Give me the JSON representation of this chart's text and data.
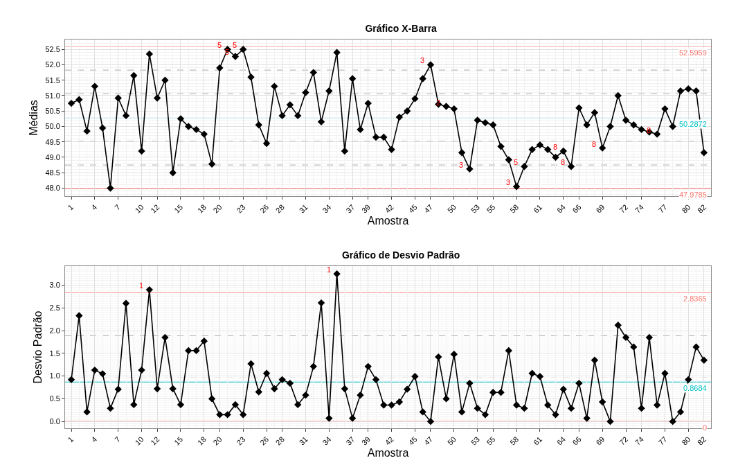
{
  "chart_data": [
    {
      "type": "line",
      "title": "Gráfico X-Barra",
      "xlabel": "Amostra",
      "ylabel": "Médias",
      "x": [
        1,
        2,
        3,
        4,
        5,
        6,
        7,
        8,
        9,
        10,
        11,
        12,
        13,
        14,
        15,
        16,
        17,
        18,
        19,
        20,
        21,
        22,
        23,
        24,
        25,
        26,
        27,
        28,
        29,
        30,
        31,
        32,
        33,
        34,
        35,
        36,
        37,
        38,
        39,
        40,
        41,
        42,
        43,
        44,
        45,
        46,
        47,
        48,
        49,
        50,
        51,
        52,
        53,
        54,
        55,
        56,
        57,
        58,
        59,
        60,
        61,
        62,
        63,
        64,
        65,
        66,
        67,
        68,
        69,
        70,
        71,
        72,
        73,
        74,
        75,
        76,
        77,
        78,
        79,
        80,
        81,
        82
      ],
      "series": [
        {
          "color": "#000000",
          "values": [
            50.75,
            50.87,
            49.85,
            51.3,
            49.95,
            48.0,
            50.92,
            50.35,
            51.65,
            49.2,
            52.35,
            50.92,
            51.5,
            48.5,
            50.25,
            50.0,
            49.9,
            49.75,
            48.78,
            51.9,
            52.5,
            52.27,
            52.5,
            51.6,
            50.05,
            49.45,
            51.3,
            50.35,
            50.7,
            50.35,
            51.1,
            51.75,
            50.15,
            51.15,
            52.4,
            49.2,
            51.55,
            49.9,
            50.75,
            49.65,
            49.65,
            49.25,
            50.3,
            50.5,
            50.9,
            51.55,
            52.0,
            50.72,
            50.65,
            50.57,
            49.15,
            48.62,
            50.2,
            50.12,
            50.05,
            49.35,
            48.92,
            48.05,
            48.7,
            49.25,
            49.4,
            49.25,
            49.0,
            49.2,
            48.7,
            50.6,
            50.05,
            50.45,
            49.3,
            50.0,
            51.0,
            50.2,
            50.05,
            49.9,
            49.82,
            49.75,
            50.57,
            50.0,
            51.15,
            51.22,
            51.15,
            49.15
          ]
        }
      ],
      "xlim": [
        0.2,
        82.9
      ],
      "xticks": [
        1,
        4,
        7,
        10,
        12,
        15,
        18,
        20,
        23,
        26,
        28,
        31,
        34,
        37,
        39,
        42,
        45,
        47,
        50,
        53,
        55,
        58,
        61,
        64,
        66,
        69,
        72,
        74,
        77,
        80,
        82
      ],
      "ylim": [
        47.74,
        52.82
      ],
      "yticks": [
        {
          "value": 48,
          "label": "48.0"
        },
        48.5,
        {
          "value": 49,
          "label": "49.0"
        },
        49.5,
        {
          "value": 50,
          "label": "50.0"
        },
        50.5,
        {
          "value": 51,
          "label": "51.0"
        },
        51.5,
        {
          "value": 52,
          "label": "52.0"
        },
        52.5
      ],
      "ref_lines": [
        {
          "axis": "y",
          "value": 52.5959,
          "label": "52.5959",
          "color": "#f8766d"
        },
        {
          "axis": "y",
          "value": 50.2872,
          "label": "50.2872",
          "color": "#00bfc4"
        },
        {
          "axis": "y",
          "value": 47.9785,
          "label": "47.9785",
          "color": "#f8766d"
        },
        {
          "axis": "y",
          "value": 51.83,
          "color": "#bbbbbb",
          "line_style": "dashed"
        },
        {
          "axis": "y",
          "value": 51.06,
          "color": "#bbbbbb",
          "line_style": "dashed"
        },
        {
          "axis": "y",
          "value": 49.52,
          "color": "#bbbbbb",
          "line_style": "dashed"
        },
        {
          "axis": "y",
          "value": 48.75,
          "color": "#bbbbbb",
          "line_style": "dashed"
        }
      ],
      "annotations": [
        {
          "text": "5",
          "x": 21,
          "y": 52.5
        },
        {
          "text": "5",
          "x": 22,
          "y": 52.27
        },
        {
          "text": "5",
          "x": 23,
          "y": 52.5
        },
        {
          "text": "3",
          "x": 47,
          "y": 52.0
        },
        {
          "text": "2",
          "x": 49,
          "y": 50.65
        },
        {
          "text": "3",
          "x": 52,
          "y": 48.62
        },
        {
          "text": "3",
          "x": 58,
          "y": 48.05
        },
        {
          "text": "5",
          "x": 59,
          "y": 48.7
        },
        {
          "text": "8",
          "x": 64,
          "y": 49.2
        },
        {
          "text": "8",
          "x": 65,
          "y": 48.7
        },
        {
          "text": "8",
          "x": 69,
          "y": 49.3
        },
        {
          "text": "8",
          "x": 76,
          "y": 49.75
        }
      ],
      "grid": true,
      "marker": "diamond",
      "line_style": "solid"
    },
    {
      "type": "line",
      "title": "Gráfico de Desvio Padrão",
      "xlabel": "Amostra",
      "ylabel": "Desvio Padrão",
      "x": [
        1,
        2,
        3,
        4,
        5,
        6,
        7,
        8,
        9,
        10,
        11,
        12,
        13,
        14,
        15,
        16,
        17,
        18,
        19,
        20,
        21,
        22,
        23,
        24,
        25,
        26,
        27,
        28,
        29,
        30,
        31,
        32,
        33,
        34,
        35,
        36,
        37,
        38,
        39,
        40,
        41,
        42,
        43,
        44,
        45,
        46,
        47,
        48,
        49,
        50,
        51,
        52,
        53,
        54,
        55,
        56,
        57,
        58,
        59,
        60,
        61,
        62,
        63,
        64,
        65,
        66,
        67,
        68,
        69,
        70,
        71,
        72,
        73,
        74,
        75,
        76,
        77,
        78,
        79,
        80,
        81,
        82
      ],
      "series": [
        {
          "color": "#000000",
          "values": [
            0.92,
            2.33,
            0.21,
            1.13,
            1.05,
            0.29,
            0.71,
            2.6,
            0.37,
            1.13,
            2.9,
            0.72,
            1.85,
            0.72,
            0.37,
            1.56,
            1.56,
            1.77,
            0.5,
            0.15,
            0.15,
            0.37,
            0.15,
            1.27,
            0.65,
            1.06,
            0.72,
            0.92,
            0.84,
            0.37,
            0.58,
            1.21,
            2.61,
            0.07,
            3.25,
            0.72,
            0.07,
            0.58,
            1.21,
            0.92,
            0.36,
            0.36,
            0.43,
            0.71,
            0.99,
            0.21,
            0,
            1.42,
            0.5,
            1.48,
            0.21,
            0.84,
            0.29,
            0.15,
            0.64,
            0.64,
            1.56,
            0.36,
            0.29,
            1.06,
            0.99,
            0.36,
            0.15,
            0.71,
            0.29,
            0.84,
            0.07,
            1.35,
            0.43,
            0,
            2.12,
            1.85,
            1.64,
            0.29,
            1.85,
            0.36,
            1.06,
            0,
            0.21,
            0.92,
            1.64,
            1.35
          ]
        }
      ],
      "xlim": [
        0.2,
        82.9
      ],
      "xticks": [
        1,
        4,
        7,
        10,
        12,
        15,
        18,
        20,
        23,
        26,
        28,
        31,
        34,
        37,
        39,
        42,
        45,
        47,
        50,
        53,
        55,
        58,
        61,
        64,
        66,
        69,
        72,
        74,
        77,
        80,
        82
      ],
      "ylim": [
        -0.15,
        3.42
      ],
      "yticks": [
        {
          "value": 0,
          "label": "0.0"
        },
        0.5,
        {
          "value": 1,
          "label": "1.0"
        },
        1.5,
        {
          "value": 2,
          "label": "2.0"
        },
        2.5,
        {
          "value": 3,
          "label": "3.0"
        }
      ],
      "ref_lines": [
        {
          "axis": "y",
          "value": 2.8365,
          "label": "2.8365",
          "color": "#f8766d"
        },
        {
          "axis": "y",
          "value": 0.8684,
          "label": "0.8684",
          "color": "#00bfc4"
        },
        {
          "axis": "y",
          "value": 0,
          "label": "0",
          "color": "#f8766d"
        },
        {
          "axis": "y",
          "value": 1.89,
          "color": "#bbbbbb",
          "line_style": "dashed"
        },
        {
          "axis": "y",
          "value": 0.96,
          "color": "#bbbbbb",
          "line_style": "dashed"
        }
      ],
      "annotations": [
        {
          "text": "1",
          "x": 11,
          "y": 2.9
        },
        {
          "text": "1",
          "x": 35,
          "y": 3.25
        }
      ],
      "grid": true,
      "marker": "diamond",
      "line_style": "solid"
    }
  ]
}
